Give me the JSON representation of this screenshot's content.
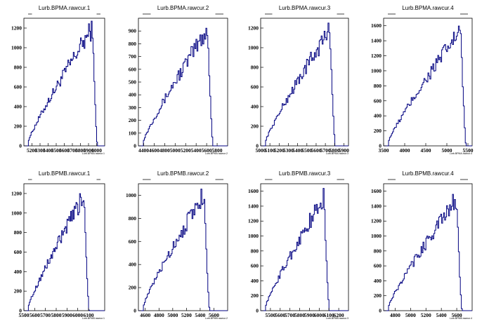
{
  "chart_data": [
    {
      "type": "histogram",
      "title": "Lurb.BPMA.rawcur.1",
      "xlabel": "Lurb.BPMA.rawcur.1",
      "xlim": [
        5100,
        6100
      ],
      "ylim": [
        0,
        1300
      ],
      "xticks": [
        5200,
        5300,
        5400,
        5500,
        5600,
        5700,
        5800,
        5900,
        6000
      ],
      "yticks": [
        0,
        200,
        400,
        600,
        800,
        1000,
        1200
      ],
      "peak_x": 5950,
      "peak_y": 1240
    },
    {
      "type": "histogram",
      "title": "Lurb.BPMA.rawcur.2",
      "xlabel": "Lurb.BPMA.rawcur.2",
      "xlim": [
        4300,
        6000
      ],
      "ylim": [
        0,
        1000
      ],
      "xticks": [
        4400,
        4600,
        4800,
        5000,
        5200,
        5400,
        5600,
        5800
      ],
      "yticks": [
        0,
        100,
        200,
        300,
        400,
        500,
        600,
        700,
        800,
        900
      ],
      "peak_x": 5620,
      "peak_y": 945
    },
    {
      "type": "histogram",
      "title": "Lurb.BPMA.rawcur.3",
      "xlabel": "Lurb.BPMA.rawcur.3",
      "xlim": [
        5000,
        5950
      ],
      "ylim": [
        0,
        1300
      ],
      "xticks": [
        5000,
        5100,
        5200,
        5300,
        5400,
        5500,
        5600,
        5700,
        5800,
        5900
      ],
      "yticks": [
        0,
        200,
        400,
        600,
        800,
        1000,
        1200
      ],
      "peak_x": 5750,
      "peak_y": 1220
    },
    {
      "type": "histogram",
      "title": "Lurb.BPMA.rawcur.4",
      "xlabel": "Lurb.BPMA.rawcur.4",
      "xlim": [
        3500,
        5600
      ],
      "ylim": [
        0,
        1700
      ],
      "xticks": [
        3500,
        4000,
        4500,
        5000,
        5500
      ],
      "yticks": [
        0,
        200,
        400,
        600,
        800,
        1000,
        1200,
        1400,
        1600
      ],
      "peak_x": 5330,
      "peak_y": 1590
    },
    {
      "type": "histogram",
      "title": "Lurb.BPMB.rawcur.1",
      "xlabel": "Lurb.BPMB.rawcur.1",
      "xlim": [
        5500,
        6250
      ],
      "ylim": [
        0,
        1300
      ],
      "xticks": [
        5500,
        5600,
        5700,
        5800,
        5900,
        6000,
        6100
      ],
      "yticks": [
        0,
        200,
        400,
        600,
        800,
        1000,
        1200
      ],
      "peak_x": 6060,
      "peak_y": 1210
    },
    {
      "type": "histogram",
      "title": "Lurb.BPMB.rawcur.2",
      "xlabel": "Lurb.BPMB.rawcur.2",
      "xlim": [
        4500,
        5800
      ],
      "ylim": [
        0,
        1100
      ],
      "xticks": [
        4600,
        4800,
        5000,
        5200,
        5400,
        5600
      ],
      "yticks": [
        0,
        200,
        400,
        600,
        800,
        1000
      ],
      "peak_x": 5460,
      "peak_y": 1050
    },
    {
      "type": "histogram",
      "title": "Lurb.BPMB.rawcur.3",
      "xlabel": "Lurb.BPMB.rawcur.3",
      "xlim": [
        5400,
        6300
      ],
      "ylim": [
        0,
        1700
      ],
      "xticks": [
        5500,
        5600,
        5700,
        5800,
        5900,
        6000,
        6100,
        6200
      ],
      "yticks": [
        0,
        200,
        400,
        600,
        800,
        1000,
        1200,
        1400,
        1600
      ],
      "peak_x": 6050,
      "peak_y": 1560
    },
    {
      "type": "histogram",
      "title": "Lurb.BPMB.rawcur.4",
      "xlabel": "Lurb.BPMB.rawcur.4",
      "xlim": [
        4650,
        5800
      ],
      "ylim": [
        0,
        1700
      ],
      "xticks": [
        4800,
        5000,
        5200,
        5400,
        5600
      ],
      "yticks": [
        0,
        200,
        400,
        600,
        800,
        1000,
        1200,
        1400,
        1600
      ],
      "peak_x": 5600,
      "peak_y": 1550
    }
  ],
  "colors": {
    "line": "#000080",
    "axis": "#000000",
    "background": "#ffffff"
  }
}
